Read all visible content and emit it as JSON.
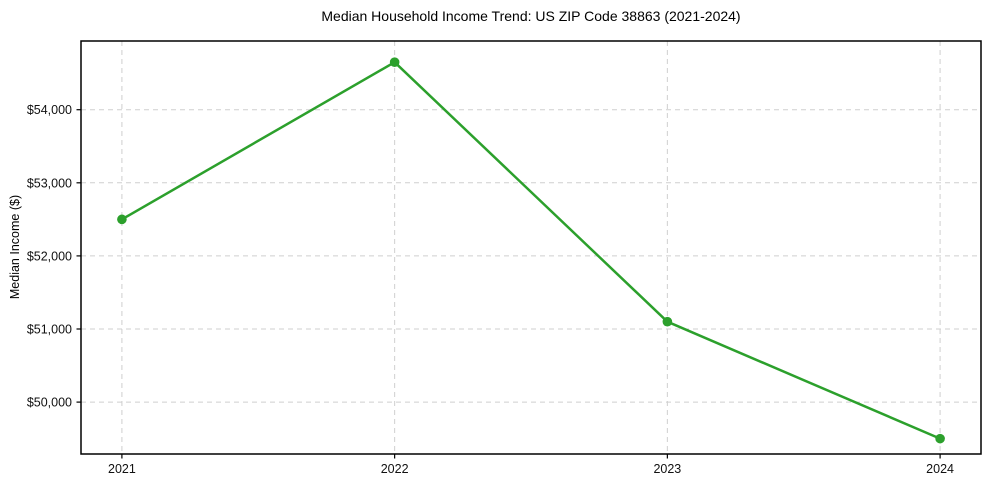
{
  "title": "Median Household Income Trend: US ZIP Code 38863 (2021-2024)",
  "chart_data": {
    "type": "line",
    "title": "Median Household Income Trend: US ZIP Code 38863 (2021-2024)",
    "xlabel": "",
    "ylabel": "Median Income ($)",
    "categories": [
      "2021",
      "2022",
      "2023",
      "2024"
    ],
    "x": [
      2021,
      2022,
      2023,
      2024
    ],
    "series": [
      {
        "name": "Median Household Income",
        "values": [
          52500,
          54650,
          51100,
          49500
        ]
      }
    ],
    "yticks": [
      50000,
      51000,
      52000,
      53000,
      54000
    ],
    "ytick_labels": [
      "$50,000",
      "$51,000",
      "$52,000",
      "$53,000",
      "$54,000"
    ],
    "xlim": [
      2020.85,
      2024.15
    ],
    "ylim": [
      49290,
      54940
    ],
    "grid": true,
    "grid_style": "dashed",
    "legend": "none",
    "line_color": "#2ca02c",
    "marker": "o",
    "marker_color": "#2ca02c",
    "background_color": "#ffffff"
  }
}
